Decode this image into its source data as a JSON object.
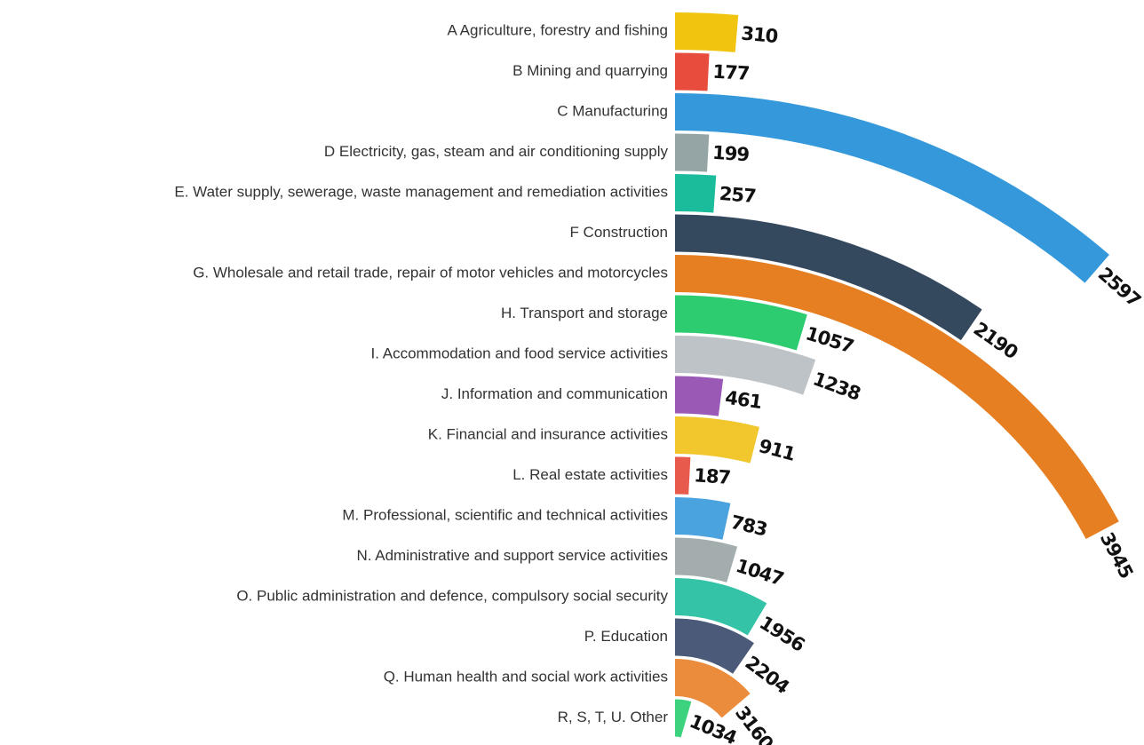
{
  "chart_data": {
    "type": "radial_bar",
    "categories": [
      "A Agriculture, forestry and fishing",
      "B Mining and quarrying",
      "C Manufacturing",
      "D Electricity, gas, steam and air conditioning supply",
      "E. Water supply, sewerage, waste management and remediation activities",
      "F Construction",
      "G. Wholesale and retail trade, repair of motor vehicles and motorcycles",
      "H. Transport and storage",
      "I. Accommodation and food service activities",
      "J. Information and communication",
      "K. Financial and insurance activities",
      "L. Real estate activities",
      "M. Professional, scientific and technical activities",
      "N. Administrative and support service activities",
      "O. Public administration and defence, compulsory social security",
      "P. Education",
      "Q. Human health and social work activities",
      "R, S, T, U. Other"
    ],
    "values": [
      310,
      177,
      2597,
      199,
      257,
      2190,
      3945,
      1057,
      1238,
      461,
      911,
      187,
      783,
      1047,
      1956,
      2204,
      3160,
      1034
    ],
    "colors": [
      "#f1c40f",
      "#e74c3c",
      "#3498db",
      "#95a5a6",
      "#1abc9c",
      "#34495e",
      "#e67e22",
      "#2ecc71",
      "#bdc3c7",
      "#9b59b6",
      "#f2c72e",
      "#e85a4c",
      "#4aa3df",
      "#a3adae",
      "#34c3a6",
      "#4a5a78",
      "#eb8c3c",
      "#3dd27d"
    ]
  }
}
